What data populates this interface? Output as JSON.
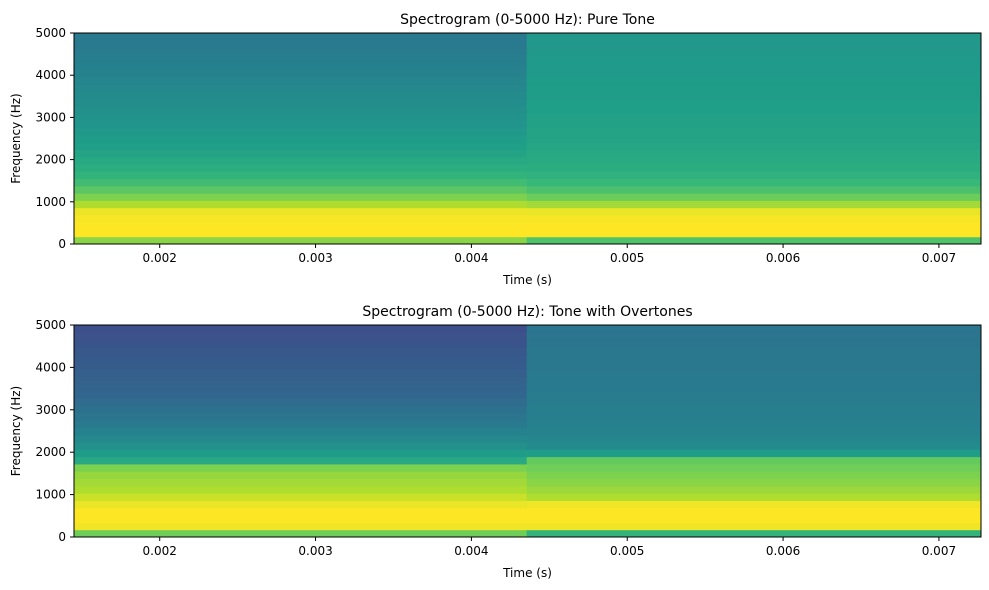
{
  "chart_data": [
    {
      "type": "heatmap",
      "title": "Spectrogram (0-5000 Hz): Pure Tone",
      "xlabel": "Time (s)",
      "ylabel": "Frequency (Hz)",
      "xlim": [
        0.00145,
        0.00727
      ],
      "ylim": [
        0,
        5000
      ],
      "x_ticks": [
        0.002,
        0.003,
        0.004,
        0.005,
        0.006,
        0.007
      ],
      "x_tick_labels": [
        "0.002",
        "0.003",
        "0.004",
        "0.005",
        "0.006",
        "0.007"
      ],
      "y_ticks": [
        0,
        1000,
        2000,
        3000,
        4000,
        5000
      ],
      "y_tick_labels": [
        "0",
        "1000",
        "2000",
        "3000",
        "4000",
        "5000"
      ],
      "colormap": "viridis",
      "time_bins": [
        {
          "x_start": 0.00145,
          "x_end": 0.004355
        },
        {
          "x_start": 0.004355,
          "x_end": 0.00727
        }
      ],
      "freq_bin_hz": 172.27,
      "intensity_columns": [
        [
          0.82,
          1.0,
          1.0,
          0.99,
          0.97,
          0.88,
          0.8,
          0.74,
          0.69,
          0.65,
          0.62,
          0.6,
          0.58,
          0.56,
          0.55,
          0.53,
          0.52,
          0.51,
          0.5,
          0.49,
          0.48,
          0.47,
          0.46,
          0.45,
          0.44,
          0.43,
          0.42,
          0.41,
          0.41,
          0.4
        ],
        [
          0.72,
          1.0,
          1.0,
          0.99,
          0.97,
          0.86,
          0.77,
          0.71,
          0.67,
          0.64,
          0.62,
          0.61,
          0.6,
          0.59,
          0.58,
          0.58,
          0.57,
          0.57,
          0.56,
          0.56,
          0.55,
          0.55,
          0.55,
          0.54,
          0.54,
          0.54,
          0.53,
          0.53,
          0.53,
          0.53
        ]
      ]
    },
    {
      "type": "heatmap",
      "title": "Spectrogram (0-5000 Hz): Tone with Overtones",
      "xlabel": "Time (s)",
      "ylabel": "Frequency (Hz)",
      "xlim": [
        0.00145,
        0.00727
      ],
      "ylim": [
        0,
        5000
      ],
      "x_ticks": [
        0.002,
        0.003,
        0.004,
        0.005,
        0.006,
        0.007
      ],
      "x_tick_labels": [
        "0.002",
        "0.003",
        "0.004",
        "0.005",
        "0.006",
        "0.007"
      ],
      "y_ticks": [
        0,
        1000,
        2000,
        3000,
        4000,
        5000
      ],
      "y_tick_labels": [
        "0",
        "1000",
        "2000",
        "3000",
        "4000",
        "5000"
      ],
      "colormap": "viridis",
      "time_bins": [
        {
          "x_start": 0.00145,
          "x_end": 0.004355
        },
        {
          "x_start": 0.004355,
          "x_end": 0.00727
        }
      ],
      "freq_bin_hz": 172.27,
      "intensity_columns": [
        [
          0.78,
          0.98,
          1.0,
          1.0,
          0.97,
          0.92,
          0.88,
          0.86,
          0.84,
          0.8,
          0.6,
          0.55,
          0.5,
          0.47,
          0.44,
          0.41,
          0.39,
          0.37,
          0.35,
          0.33,
          0.32,
          0.31,
          0.3,
          0.29,
          0.28,
          0.27,
          0.26,
          0.25,
          0.24,
          0.23
        ],
        [
          0.65,
          0.98,
          1.0,
          1.0,
          0.98,
          0.88,
          0.85,
          0.82,
          0.8,
          0.78,
          0.76,
          0.55,
          0.48,
          0.46,
          0.45,
          0.44,
          0.43,
          0.43,
          0.42,
          0.42,
          0.41,
          0.41,
          0.41,
          0.4,
          0.4,
          0.4,
          0.39,
          0.39,
          0.39,
          0.39
        ]
      ]
    }
  ]
}
